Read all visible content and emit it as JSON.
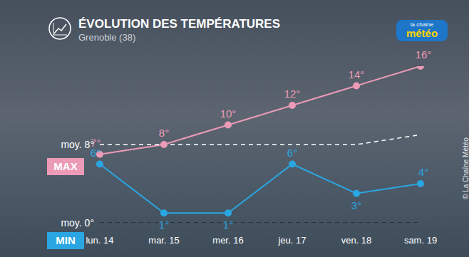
{
  "chart_data": {
    "type": "line",
    "title": "ÉVOLUTION DES TEMPÉRATURES",
    "subtitle": "Grenoble (38)",
    "annotations": [
      "la chaîne",
      "météo",
      "© La Chaîne Météo"
    ],
    "categories": [
      "lun. 14",
      "mar. 15",
      "mer. 16",
      "jeu. 17",
      "ven. 18",
      "sam. 19"
    ],
    "series": [
      {
        "name": "MAX",
        "color": "#ec9bb7",
        "marker": "circle",
        "line_style": "solid",
        "values": [
          7,
          8,
          10,
          12,
          14,
          16
        ],
        "value_labels": [
          "7°",
          "8°",
          "10°",
          "12°",
          "14°",
          "16°"
        ]
      },
      {
        "name": "MIN",
        "color": "#2aa6e2",
        "marker": "circle",
        "line_style": "solid",
        "values": [
          6,
          1,
          1,
          6,
          3,
          4
        ],
        "value_labels": [
          "6°",
          "1°",
          "1°",
          "6°",
          "3°",
          "4°"
        ]
      },
      {
        "name": "moy. 8°",
        "color": "#ffffff",
        "marker": "none",
        "line_style": "dashed",
        "values": [
          8,
          8,
          8,
          8,
          8,
          9
        ]
      },
      {
        "name": "moy. 0°",
        "color": "#1f2a36",
        "marker": "none",
        "line_style": "dashed",
        "values": [
          0,
          0,
          0,
          0,
          0,
          0
        ]
      }
    ],
    "ylim": [
      0,
      16
    ],
    "tick_labels": "x",
    "data_labels": true,
    "grid": false
  }
}
